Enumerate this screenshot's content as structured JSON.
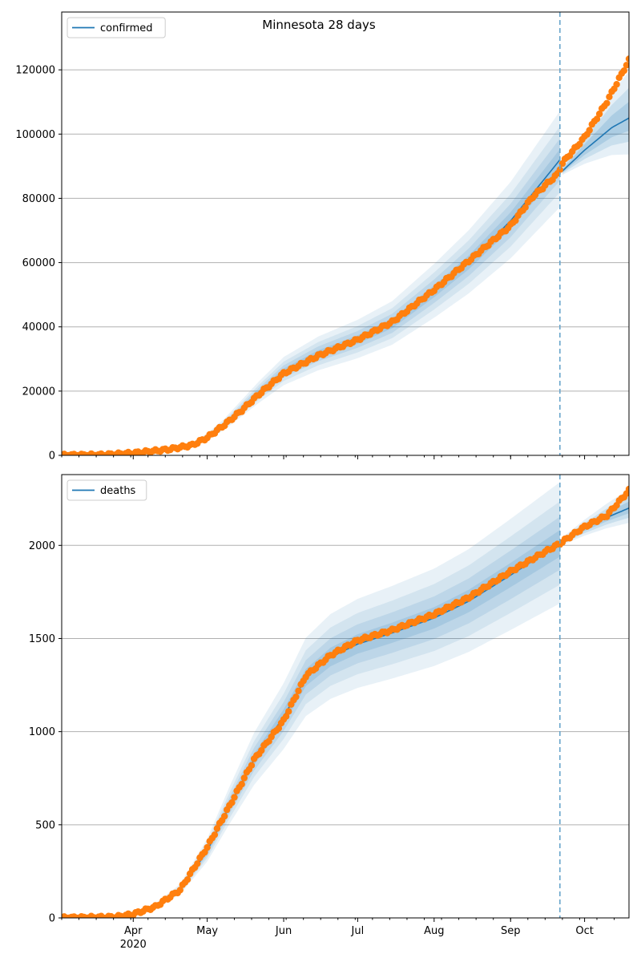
{
  "title": "Minnesota 28 days",
  "colors": {
    "model": "#1f77b4",
    "observed": "#ff7f0e",
    "band": "#1f77b4",
    "divider": "#6aa6cc",
    "grid": "#b0b0b0"
  },
  "chart_data": [
    {
      "type": "line",
      "name": "confirmed-panel",
      "legend": "confirmed",
      "legend_position": "top-left",
      "grid": "horizontal",
      "xlim": [
        "2020-03-03",
        "2020-10-19"
      ],
      "ylim": [
        0,
        138000
      ],
      "y_ticks": [
        0,
        20000,
        40000,
        60000,
        80000,
        100000,
        120000
      ],
      "x_ticks": [
        {
          "date": "2020-04-01",
          "label": "Apr",
          "sublabel": "2020"
        },
        {
          "date": "2020-05-01",
          "label": "May"
        },
        {
          "date": "2020-06-01",
          "label": "Jun"
        },
        {
          "date": "2020-07-01",
          "label": "Jul"
        },
        {
          "date": "2020-08-01",
          "label": "Aug"
        },
        {
          "date": "2020-09-01",
          "label": "Sep"
        },
        {
          "date": "2020-10-01",
          "label": "Oct"
        }
      ],
      "divider_date": "2020-09-21",
      "fit_keyframes": [
        [
          "2020-03-03",
          0
        ],
        [
          "2020-04-01",
          500
        ],
        [
          "2020-04-15",
          1700
        ],
        [
          "2020-04-25",
          3200
        ],
        [
          "2020-05-01",
          5500
        ],
        [
          "2020-05-08",
          9500
        ],
        [
          "2020-05-15",
          14500
        ],
        [
          "2020-05-22",
          19500
        ],
        [
          "2020-06-01",
          26000
        ],
        [
          "2020-06-15",
          31500
        ],
        [
          "2020-07-01",
          36000
        ],
        [
          "2020-07-15",
          41000
        ],
        [
          "2020-08-01",
          51000
        ],
        [
          "2020-08-15",
          60000
        ],
        [
          "2020-09-01",
          73000
        ],
        [
          "2020-09-21",
          92000
        ]
      ],
      "forecast_keyframes": [
        [
          "2020-09-22",
          88500
        ],
        [
          "2020-10-01",
          95000
        ],
        [
          "2020-10-12",
          102000
        ],
        [
          "2020-10-19",
          105000
        ]
      ],
      "forecast_band_frac": [
        [
          0.0,
          0.015
        ],
        [
          1.0,
          0.12
        ]
      ],
      "observed_keyframes": [
        [
          "2020-03-03",
          0
        ],
        [
          "2020-03-20",
          150
        ],
        [
          "2020-04-01",
          700
        ],
        [
          "2020-04-15",
          1800
        ],
        [
          "2020-04-25",
          3200
        ],
        [
          "2020-05-01",
          5500
        ],
        [
          "2020-05-08",
          9500
        ],
        [
          "2020-05-15",
          14000
        ],
        [
          "2020-05-22",
          19000
        ],
        [
          "2020-06-01",
          25500
        ],
        [
          "2020-06-15",
          31000
        ],
        [
          "2020-07-01",
          36000
        ],
        [
          "2020-07-15",
          41500
        ],
        [
          "2020-08-01",
          51500
        ],
        [
          "2020-08-15",
          60500
        ],
        [
          "2020-09-01",
          71500
        ],
        [
          "2020-09-10",
          80500
        ],
        [
          "2020-09-20",
          87500
        ],
        [
          "2020-09-22",
          91000
        ],
        [
          "2020-10-01",
          99000
        ],
        [
          "2020-10-10",
          110000
        ],
        [
          "2020-10-19",
          123000
        ]
      ]
    },
    {
      "type": "line",
      "name": "deaths-panel",
      "legend": "deaths",
      "legend_position": "top-left",
      "grid": "horizontal",
      "xlim": [
        "2020-03-03",
        "2020-10-19"
      ],
      "ylim": [
        0,
        2380
      ],
      "y_ticks": [
        0,
        500,
        1000,
        1500,
        2000
      ],
      "x_ticks": [
        {
          "date": "2020-04-01",
          "label": "Apr",
          "sublabel": "2020"
        },
        {
          "date": "2020-05-01",
          "label": "May"
        },
        {
          "date": "2020-06-01",
          "label": "Jun"
        },
        {
          "date": "2020-07-01",
          "label": "Jul"
        },
        {
          "date": "2020-08-01",
          "label": "Aug"
        },
        {
          "date": "2020-09-01",
          "label": "Sep"
        },
        {
          "date": "2020-10-01",
          "label": "Oct"
        }
      ],
      "divider_date": "2020-09-21",
      "fit_keyframes": [
        [
          "2020-03-03",
          0
        ],
        [
          "2020-03-25",
          5
        ],
        [
          "2020-04-01",
          20
        ],
        [
          "2020-04-10",
          60
        ],
        [
          "2020-04-20",
          150
        ],
        [
          "2020-05-01",
          360
        ],
        [
          "2020-05-10",
          600
        ],
        [
          "2020-05-20",
          850
        ],
        [
          "2020-06-01",
          1080
        ],
        [
          "2020-06-10",
          1290
        ],
        [
          "2020-06-20",
          1400
        ],
        [
          "2020-07-01",
          1470
        ],
        [
          "2020-07-15",
          1530
        ],
        [
          "2020-08-01",
          1610
        ],
        [
          "2020-08-15",
          1700
        ],
        [
          "2020-09-01",
          1840
        ],
        [
          "2020-09-21",
          2010
        ]
      ],
      "forecast_keyframes": [
        [
          "2020-09-22",
          2020
        ],
        [
          "2020-10-01",
          2090
        ],
        [
          "2020-10-10",
          2150
        ],
        [
          "2020-10-19",
          2200
        ]
      ],
      "forecast_band_frac": [
        [
          0.0,
          0.01
        ],
        [
          1.0,
          0.04
        ]
      ],
      "observed_keyframes": [
        [
          "2020-03-03",
          0
        ],
        [
          "2020-03-25",
          5
        ],
        [
          "2020-04-01",
          20
        ],
        [
          "2020-04-10",
          60
        ],
        [
          "2020-04-20",
          150
        ],
        [
          "2020-05-01",
          380
        ],
        [
          "2020-05-10",
          600
        ],
        [
          "2020-05-20",
          850
        ],
        [
          "2020-06-01",
          1060
        ],
        [
          "2020-06-10",
          1300
        ],
        [
          "2020-06-20",
          1410
        ],
        [
          "2020-07-01",
          1490
        ],
        [
          "2020-07-15",
          1545
        ],
        [
          "2020-08-01",
          1630
        ],
        [
          "2020-08-15",
          1720
        ],
        [
          "2020-09-01",
          1860
        ],
        [
          "2020-09-21",
          2010
        ],
        [
          "2020-10-01",
          2100
        ],
        [
          "2020-10-10",
          2160
        ],
        [
          "2020-10-19",
          2295
        ]
      ]
    }
  ]
}
